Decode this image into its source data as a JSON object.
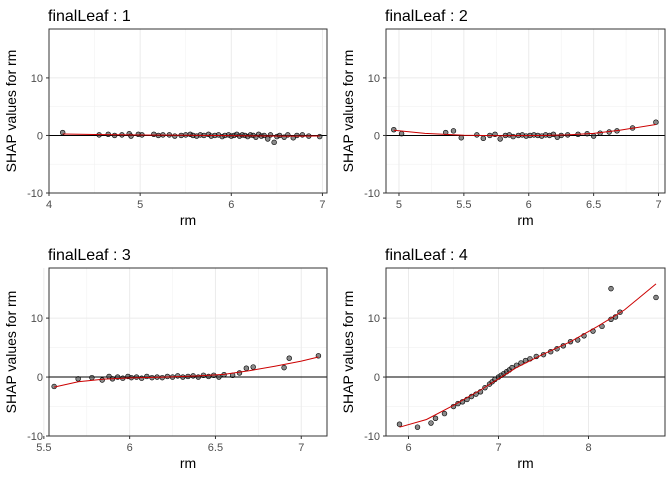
{
  "chart_data": [
    {
      "type": "scatter",
      "title": "finalLeaf : 1",
      "xlabel": "rm",
      "ylabel": "SHAP values for rm",
      "xlim": [
        4.0,
        7.05
      ],
      "ylim": [
        -10,
        18.5
      ],
      "xticks": [
        4,
        5,
        6,
        7
      ],
      "yticks": [
        -10,
        0,
        10
      ],
      "reference_line_y": 0,
      "grid": true,
      "points": [
        [
          4.15,
          0.5
        ],
        [
          4.55,
          0.1
        ],
        [
          4.65,
          0.2
        ],
        [
          4.72,
          0.0
        ],
        [
          4.8,
          0.1
        ],
        [
          4.88,
          0.3
        ],
        [
          4.9,
          -0.1
        ],
        [
          4.98,
          0.2
        ],
        [
          5.02,
          0.1
        ],
        [
          5.15,
          0.2
        ],
        [
          5.2,
          0.0
        ],
        [
          5.25,
          0.1
        ],
        [
          5.32,
          0.1
        ],
        [
          5.38,
          -0.1
        ],
        [
          5.45,
          0.0
        ],
        [
          5.5,
          0.1
        ],
        [
          5.55,
          0.2
        ],
        [
          5.58,
          0.0
        ],
        [
          5.62,
          -0.1
        ],
        [
          5.66,
          0.1
        ],
        [
          5.7,
          0.0
        ],
        [
          5.75,
          0.2
        ],
        [
          5.78,
          -0.1
        ],
        [
          5.82,
          0.0
        ],
        [
          5.86,
          0.1
        ],
        [
          5.9,
          -0.2
        ],
        [
          5.93,
          0.0
        ],
        [
          5.97,
          0.1
        ],
        [
          6.0,
          -0.1
        ],
        [
          6.03,
          0.0
        ],
        [
          6.06,
          0.2
        ],
        [
          6.09,
          -0.1
        ],
        [
          6.12,
          0.1
        ],
        [
          6.15,
          0.0
        ],
        [
          6.18,
          -0.2
        ],
        [
          6.21,
          0.1
        ],
        [
          6.24,
          0.0
        ],
        [
          6.27,
          -0.3
        ],
        [
          6.3,
          0.2
        ],
        [
          6.33,
          -0.1
        ],
        [
          6.36,
          0.0
        ],
        [
          6.4,
          -0.6
        ],
        [
          6.43,
          0.1
        ],
        [
          6.47,
          -1.2
        ],
        [
          6.5,
          -0.2
        ],
        [
          6.53,
          0.0
        ],
        [
          6.58,
          -0.3
        ],
        [
          6.62,
          0.1
        ],
        [
          6.68,
          -0.4
        ],
        [
          6.72,
          0.0
        ],
        [
          6.78,
          0.1
        ],
        [
          6.85,
          -0.1
        ],
        [
          6.97,
          -0.2
        ]
      ],
      "smooth": [
        [
          4.15,
          0.25
        ],
        [
          4.5,
          0.17
        ],
        [
          5.0,
          0.08
        ],
        [
          5.5,
          0.02
        ],
        [
          6.0,
          -0.03
        ],
        [
          6.3,
          -0.08
        ],
        [
          6.6,
          -0.12
        ],
        [
          6.97,
          -0.1
        ]
      ]
    },
    {
      "type": "scatter",
      "title": "finalLeaf : 2",
      "xlabel": "rm",
      "ylabel": "SHAP values for rm",
      "xlim": [
        4.9,
        7.05
      ],
      "ylim": [
        -10,
        18.5
      ],
      "xticks": [
        5.0,
        5.5,
        6.0,
        6.5,
        7.0
      ],
      "yticks": [
        -10,
        0,
        10
      ],
      "reference_line_y": 0,
      "grid": true,
      "points": [
        [
          4.96,
          1.0
        ],
        [
          5.02,
          0.3
        ],
        [
          5.36,
          0.5
        ],
        [
          5.42,
          0.8
        ],
        [
          5.48,
          -0.4
        ],
        [
          5.6,
          0.1
        ],
        [
          5.65,
          -0.5
        ],
        [
          5.7,
          0.0
        ],
        [
          5.74,
          0.2
        ],
        [
          5.78,
          -0.6
        ],
        [
          5.82,
          0.0
        ],
        [
          5.85,
          0.1
        ],
        [
          5.88,
          -0.2
        ],
        [
          5.92,
          0.0
        ],
        [
          5.95,
          0.1
        ],
        [
          5.98,
          -0.1
        ],
        [
          6.01,
          0.0
        ],
        [
          6.04,
          0.1
        ],
        [
          6.07,
          0.0
        ],
        [
          6.1,
          -0.1
        ],
        [
          6.13,
          0.1
        ],
        [
          6.16,
          0.0
        ],
        [
          6.19,
          0.2
        ],
        [
          6.22,
          -0.3
        ],
        [
          6.25,
          0.0
        ],
        [
          6.3,
          0.1
        ],
        [
          6.38,
          0.2
        ],
        [
          6.45,
          0.3
        ],
        [
          6.5,
          -0.1
        ],
        [
          6.55,
          0.4
        ],
        [
          6.62,
          0.6
        ],
        [
          6.68,
          0.8
        ],
        [
          6.8,
          1.3
        ],
        [
          6.98,
          2.3
        ]
      ],
      "smooth": [
        [
          4.96,
          0.9
        ],
        [
          5.2,
          0.35
        ],
        [
          5.5,
          0.05
        ],
        [
          5.8,
          -0.05
        ],
        [
          6.1,
          0.0
        ],
        [
          6.3,
          0.1
        ],
        [
          6.5,
          0.35
        ],
        [
          6.7,
          0.9
        ],
        [
          6.98,
          1.9
        ]
      ]
    },
    {
      "type": "scatter",
      "title": "finalLeaf : 3",
      "xlabel": "rm",
      "ylabel": "SHAP values for rm",
      "xlim": [
        5.53,
        7.15
      ],
      "ylim": [
        -10,
        18.5
      ],
      "xticks": [
        5.5,
        6.0,
        6.5,
        7.0
      ],
      "yticks": [
        -10,
        0,
        10
      ],
      "reference_line_y": 0,
      "grid": true,
      "points": [
        [
          5.56,
          -1.6
        ],
        [
          5.7,
          -0.3
        ],
        [
          5.78,
          -0.1
        ],
        [
          5.84,
          -0.5
        ],
        [
          5.88,
          0.1
        ],
        [
          5.9,
          -0.3
        ],
        [
          5.93,
          0.0
        ],
        [
          5.96,
          -0.2
        ],
        [
          5.99,
          0.1
        ],
        [
          6.01,
          -0.1
        ],
        [
          6.04,
          0.0
        ],
        [
          6.07,
          -0.2
        ],
        [
          6.1,
          0.1
        ],
        [
          6.13,
          -0.1
        ],
        [
          6.16,
          0.0
        ],
        [
          6.19,
          -0.1
        ],
        [
          6.22,
          0.1
        ],
        [
          6.25,
          0.0
        ],
        [
          6.28,
          0.2
        ],
        [
          6.31,
          0.0
        ],
        [
          6.34,
          0.1
        ],
        [
          6.37,
          0.2
        ],
        [
          6.4,
          0.0
        ],
        [
          6.43,
          0.3
        ],
        [
          6.46,
          0.1
        ],
        [
          6.49,
          0.3
        ],
        [
          6.52,
          0.0
        ],
        [
          6.55,
          0.4
        ],
        [
          6.6,
          0.3
        ],
        [
          6.64,
          0.7
        ],
        [
          6.68,
          1.5
        ],
        [
          6.72,
          1.7
        ],
        [
          6.9,
          1.6
        ],
        [
          6.93,
          3.2
        ],
        [
          7.1,
          3.6
        ]
      ],
      "smooth": [
        [
          5.56,
          -1.7
        ],
        [
          5.7,
          -0.8
        ],
        [
          5.85,
          -0.35
        ],
        [
          6.0,
          -0.15
        ],
        [
          6.2,
          0.0
        ],
        [
          6.4,
          0.2
        ],
        [
          6.55,
          0.45
        ],
        [
          6.7,
          1.1
        ],
        [
          6.85,
          1.85
        ],
        [
          7.0,
          2.7
        ],
        [
          7.1,
          3.4
        ]
      ]
    },
    {
      "type": "scatter",
      "title": "finalLeaf : 4",
      "xlabel": "rm",
      "ylabel": "SHAP values for rm",
      "xlim": [
        5.75,
        8.85
      ],
      "ylim": [
        -10,
        18.5
      ],
      "xticks": [
        6,
        7,
        8
      ],
      "yticks": [
        -10,
        0,
        10
      ],
      "reference_line_y": 0,
      "grid": true,
      "points": [
        [
          5.9,
          -8.0
        ],
        [
          6.1,
          -8.5
        ],
        [
          6.25,
          -7.8
        ],
        [
          6.3,
          -7.0
        ],
        [
          6.4,
          -6.2
        ],
        [
          6.5,
          -5.0
        ],
        [
          6.55,
          -4.5
        ],
        [
          6.6,
          -4.2
        ],
        [
          6.65,
          -3.8
        ],
        [
          6.7,
          -3.3
        ],
        [
          6.75,
          -2.9
        ],
        [
          6.8,
          -2.5
        ],
        [
          6.85,
          -1.8
        ],
        [
          6.9,
          -1.2
        ],
        [
          6.93,
          -0.8
        ],
        [
          6.96,
          -0.4
        ],
        [
          7.0,
          0.0
        ],
        [
          7.03,
          0.3
        ],
        [
          7.06,
          0.6
        ],
        [
          7.09,
          0.9
        ],
        [
          7.12,
          1.2
        ],
        [
          7.15,
          1.6
        ],
        [
          7.2,
          2.0
        ],
        [
          7.25,
          2.4
        ],
        [
          7.3,
          2.8
        ],
        [
          7.35,
          3.1
        ],
        [
          7.42,
          3.5
        ],
        [
          7.5,
          3.8
        ],
        [
          7.58,
          4.3
        ],
        [
          7.65,
          4.8
        ],
        [
          7.72,
          5.3
        ],
        [
          7.8,
          6.0
        ],
        [
          7.88,
          6.3
        ],
        [
          7.95,
          7.0
        ],
        [
          8.05,
          7.8
        ],
        [
          8.15,
          8.6
        ],
        [
          8.25,
          9.8
        ],
        [
          8.3,
          10.2
        ],
        [
          8.35,
          11.0
        ],
        [
          8.25,
          15.0
        ],
        [
          8.75,
          13.5
        ]
      ],
      "smooth": [
        [
          5.9,
          -8.5
        ],
        [
          6.2,
          -7.2
        ],
        [
          6.5,
          -4.8
        ],
        [
          6.8,
          -2.2
        ],
        [
          7.0,
          -0.3
        ],
        [
          7.2,
          1.6
        ],
        [
          7.5,
          3.9
        ],
        [
          7.8,
          6.0
        ],
        [
          8.1,
          8.6
        ],
        [
          8.4,
          11.4
        ],
        [
          8.75,
          15.8
        ]
      ]
    }
  ]
}
